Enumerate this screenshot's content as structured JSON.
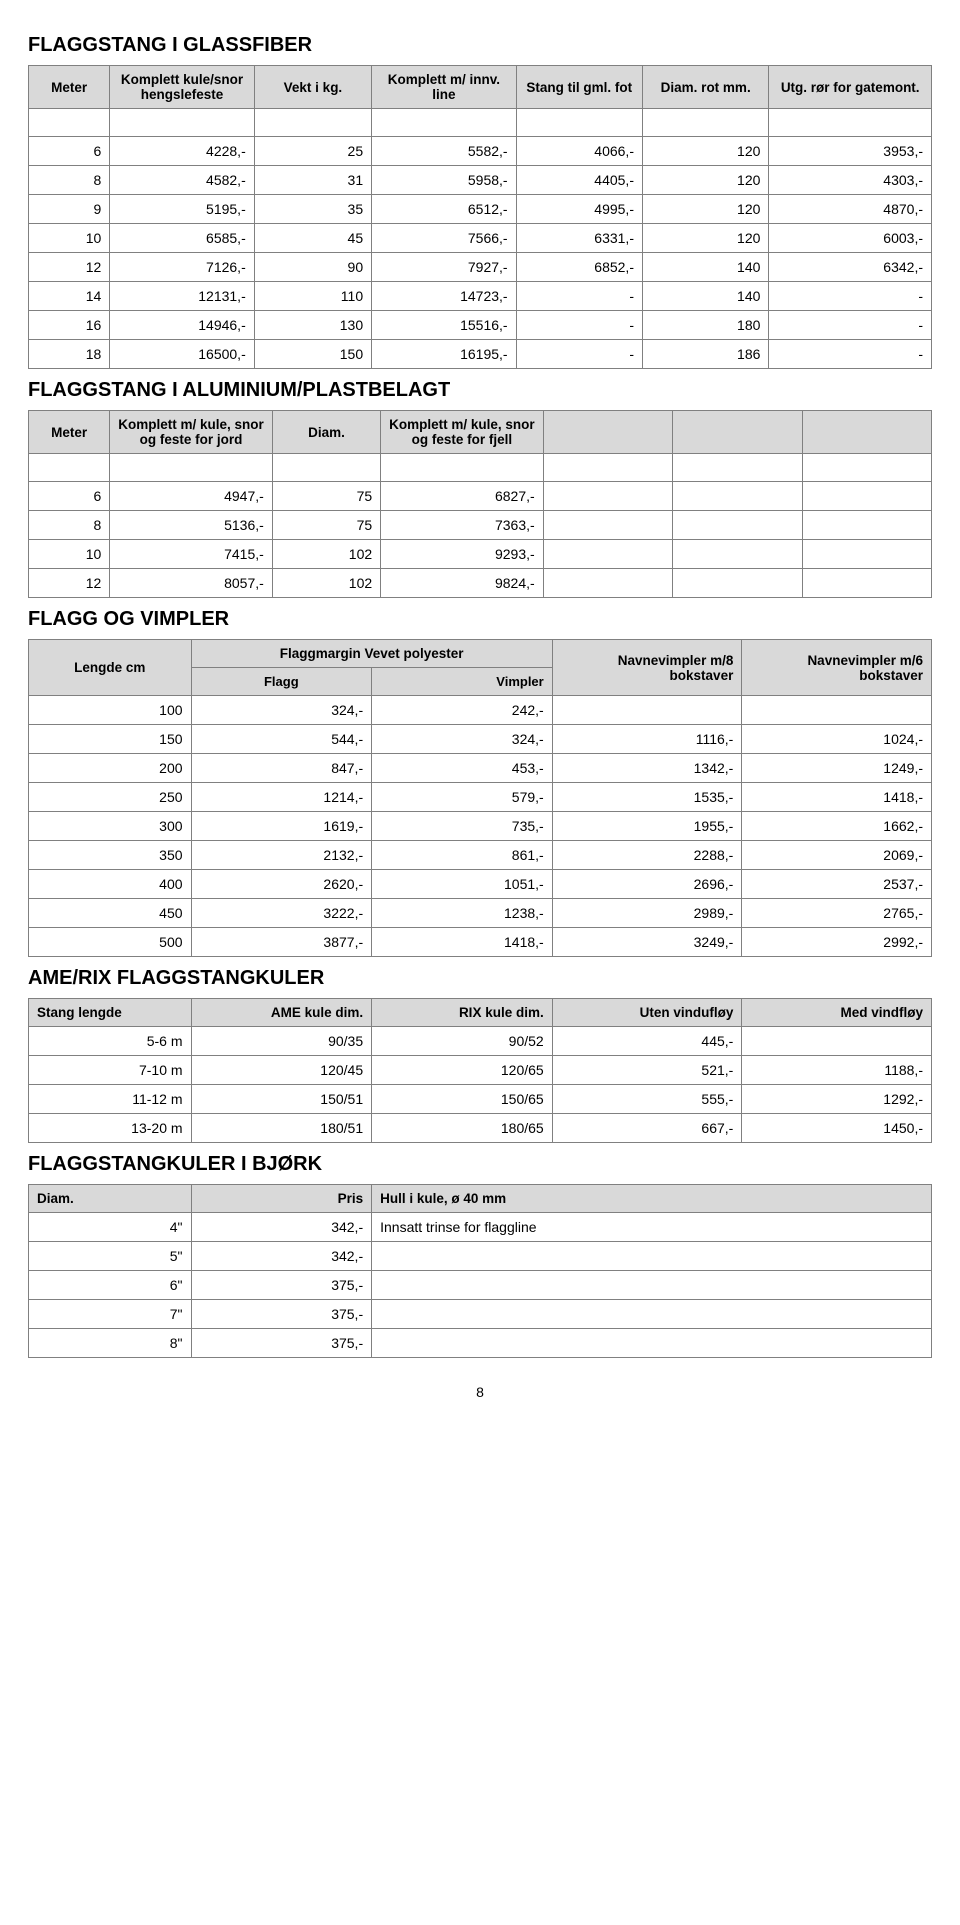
{
  "page_number": "8",
  "glassfiber": {
    "title": "FLAGGSTANG I GLASSFIBER",
    "headers": [
      "Meter",
      "Komplett kule/snor hengslefeste",
      "Vekt i kg.",
      "Komplett m/ innv. line",
      "Stang til gml. fot",
      "Diam. rot mm.",
      "Utg. rør for gatemont."
    ],
    "rows": [
      [
        "6",
        "4228,-",
        "25",
        "5582,-",
        "4066,-",
        "120",
        "3953,-"
      ],
      [
        "8",
        "4582,-",
        "31",
        "5958,-",
        "4405,-",
        "120",
        "4303,-"
      ],
      [
        "9",
        "5195,-",
        "35",
        "6512,-",
        "4995,-",
        "120",
        "4870,-"
      ],
      [
        "10",
        "6585,-",
        "45",
        "7566,-",
        "6331,-",
        "120",
        "6003,-"
      ],
      [
        "12",
        "7126,-",
        "90",
        "7927,-",
        "6852,-",
        "140",
        "6342,-"
      ],
      [
        "14",
        "12131,-",
        "110",
        "14723,-",
        "-",
        "140",
        "-"
      ],
      [
        "16",
        "14946,-",
        "130",
        "15516,-",
        "-",
        "180",
        "-"
      ],
      [
        "18",
        "16500,-",
        "150",
        "16195,-",
        "-",
        "186",
        "-"
      ]
    ]
  },
  "aluminium": {
    "title": "FLAGGSTANG I ALUMINIUM/PLASTBELAGT",
    "headers": [
      "Meter",
      "Komplett m/ kule, snor og feste for jord",
      "Diam.",
      "Komplett m/ kule, snor og feste for fjell"
    ],
    "rows": [
      [
        "6",
        "4947,-",
        "75",
        "6827,-"
      ],
      [
        "8",
        "5136,-",
        "75",
        "7363,-"
      ],
      [
        "10",
        "7415,-",
        "102",
        "9293,-"
      ],
      [
        "12",
        "8057,-",
        "102",
        "9824,-"
      ]
    ]
  },
  "flagg_vimpler": {
    "title": "FLAGG OG VIMPLER",
    "h_lengde": "Lengde cm",
    "h_margin": "Flaggmargin Vevet polyester",
    "h_flagg": "Flagg",
    "h_vimpler": "Vimpler",
    "h_nv8": "Navnevimpler m/8 bokstaver",
    "h_nv6": "Navnevimpler m/6 bokstaver",
    "rows": [
      [
        "100",
        "324,-",
        "242,-",
        "",
        ""
      ],
      [
        "150",
        "544,-",
        "324,-",
        "1116,-",
        "1024,-"
      ],
      [
        "200",
        "847,-",
        "453,-",
        "1342,-",
        "1249,-"
      ],
      [
        "250",
        "1214,-",
        "579,-",
        "1535,-",
        "1418,-"
      ],
      [
        "300",
        "1619,-",
        "735,-",
        "1955,-",
        "1662,-"
      ],
      [
        "350",
        "2132,-",
        "861,-",
        "2288,-",
        "2069,-"
      ],
      [
        "400",
        "2620,-",
        "1051,-",
        "2696,-",
        "2537,-"
      ],
      [
        "450",
        "3222,-",
        "1238,-",
        "2989,-",
        "2765,-"
      ],
      [
        "500",
        "3877,-",
        "1418,-",
        "3249,-",
        "2992,-"
      ]
    ]
  },
  "amerix": {
    "title": "AME/RIX FLAGGSTANGKULER",
    "headers": [
      "Stang lengde",
      "AME kule dim.",
      "RIX kule dim.",
      "Uten vindufløy",
      "Med vindfløy"
    ],
    "rows": [
      [
        "5-6 m",
        "90/35",
        "90/52",
        "445,-",
        ""
      ],
      [
        "7-10 m",
        "120/45",
        "120/65",
        "521,-",
        "1188,-"
      ],
      [
        "11-12 m",
        "150/51",
        "150/65",
        "555,-",
        "1292,-"
      ],
      [
        "13-20 m",
        "180/51",
        "180/65",
        "667,-",
        "1450,-"
      ]
    ]
  },
  "bjork": {
    "title": "FLAGGSTANGKULER I BJØRK",
    "h_diam": "Diam.",
    "h_pris": "Pris",
    "h_hull": "Hull i kule, ø 40 mm",
    "note": "Innsatt trinse for flaggline",
    "rows": [
      [
        "4\"",
        "342,-"
      ],
      [
        "5\"",
        "342,-"
      ],
      [
        "6\"",
        "375,-"
      ],
      [
        "7\"",
        "375,-"
      ],
      [
        "8\"",
        "375,-"
      ]
    ]
  }
}
